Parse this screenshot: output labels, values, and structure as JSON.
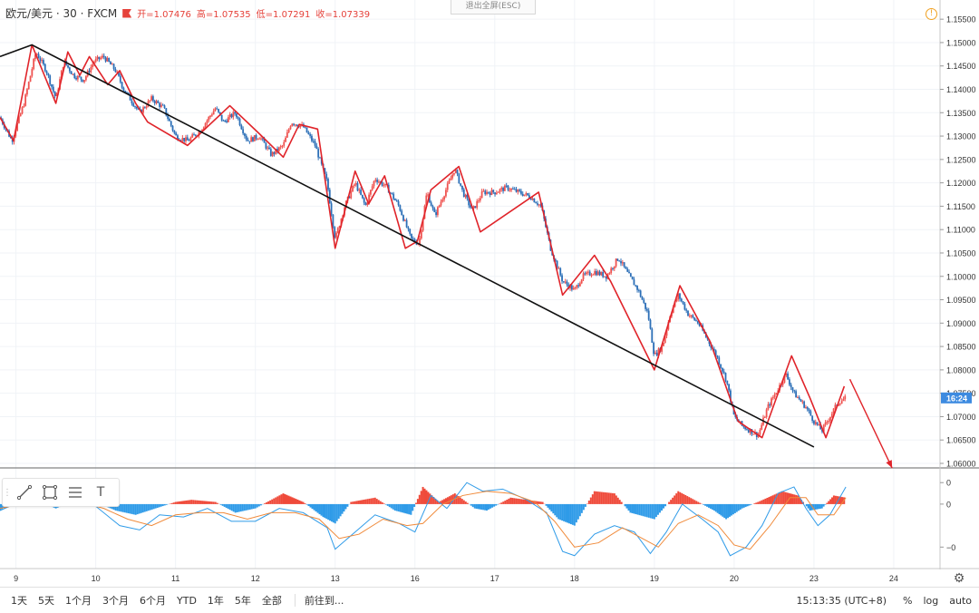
{
  "header": {
    "symbol": "欧元/美元 · 30 · FXCM",
    "open_label": "开=1.07476",
    "high_label": "高=1.07535",
    "low_label": "低=1.07291",
    "close_label": "收=1.07339"
  },
  "exit_fullscreen": "退出全屏(ESC)",
  "warn_icon_text": "!",
  "price_badge": "16:24",
  "colors": {
    "up": "#ef5350",
    "down": "#2c6fb7",
    "zigzag": "#e0242a",
    "trend": "#111111",
    "macd_up": "#ef4a3a",
    "macd_down": "#2f9be8",
    "badge": "#3d8be0"
  },
  "toolbar": {
    "icons": [
      "line-tool-icon",
      "rect-tool-icon",
      "fib-tool-icon",
      "text-tool-icon"
    ],
    "text_tool": "T"
  },
  "bottom_bar": {
    "ranges": [
      "1天",
      "5天",
      "1个月",
      "3个月",
      "6个月",
      "YTD",
      "1年",
      "5年",
      "全部"
    ],
    "goto": "前往到...",
    "time": "15:13:35 (UTC+8)",
    "percent": "%",
    "log": "log",
    "auto": "auto"
  },
  "chart_data": [
    {
      "type": "candlestick",
      "title": "欧元/美元 · 30 · FXCM",
      "y_ticks": [
        "1.15500",
        "1.15000",
        "1.14500",
        "1.14000",
        "1.13500",
        "1.13000",
        "1.12500",
        "1.12000",
        "1.11500",
        "1.11000",
        "1.10500",
        "1.10000",
        "1.09500",
        "1.09000",
        "1.08500",
        "1.08000",
        "1.07500",
        "1.07000",
        "1.06500",
        "1.06000"
      ],
      "ylim": [
        1.06,
        1.156
      ],
      "x_ticks": [
        {
          "label": "9",
          "x": 9.0
        },
        {
          "label": "10",
          "x": 10.0
        },
        {
          "label": "11",
          "x": 11.0
        },
        {
          "label": "12",
          "x": 12.0
        },
        {
          "label": "13",
          "x": 13.0
        },
        {
          "label": "16",
          "x": 14.0
        },
        {
          "label": "17",
          "x": 15.0
        },
        {
          "label": "18",
          "x": 16.0
        },
        {
          "label": "19",
          "x": 17.0
        },
        {
          "label": "20",
          "x": 18.0
        },
        {
          "label": "23",
          "x": 19.0
        },
        {
          "label": "24",
          "x": 20.0
        }
      ],
      "xlim": [
        8.8,
        20.58
      ],
      "price_path": [
        [
          8.8,
          1.134
        ],
        [
          8.95,
          1.129
        ],
        [
          9.1,
          1.137
        ],
        [
          9.25,
          1.148
        ],
        [
          9.38,
          1.144
        ],
        [
          9.5,
          1.138
        ],
        [
          9.6,
          1.146
        ],
        [
          9.72,
          1.143
        ],
        [
          9.85,
          1.142
        ],
        [
          9.98,
          1.146
        ],
        [
          10.1,
          1.147
        ],
        [
          10.25,
          1.144
        ],
        [
          10.35,
          1.14
        ],
        [
          10.55,
          1.135
        ],
        [
          10.7,
          1.138
        ],
        [
          10.85,
          1.136
        ],
        [
          11.0,
          1.13
        ],
        [
          11.15,
          1.129
        ],
        [
          11.3,
          1.131
        ],
        [
          11.5,
          1.136
        ],
        [
          11.6,
          1.133
        ],
        [
          11.75,
          1.135
        ],
        [
          11.9,
          1.129
        ],
        [
          12.05,
          1.13
        ],
        [
          12.2,
          1.126
        ],
        [
          12.35,
          1.128
        ],
        [
          12.45,
          1.133
        ],
        [
          12.6,
          1.132
        ],
        [
          12.75,
          1.128
        ],
        [
          12.9,
          1.12
        ],
        [
          13.0,
          1.108
        ],
        [
          13.12,
          1.115
        ],
        [
          13.25,
          1.12
        ],
        [
          13.38,
          1.115
        ],
        [
          13.5,
          1.121
        ],
        [
          13.65,
          1.119
        ],
        [
          13.8,
          1.115
        ],
        [
          13.95,
          1.108
        ],
        [
          14.05,
          1.107
        ],
        [
          14.15,
          1.118
        ],
        [
          14.25,
          1.113
        ],
        [
          14.35,
          1.117
        ],
        [
          14.5,
          1.123
        ],
        [
          14.6,
          1.118
        ],
        [
          14.72,
          1.114
        ],
        [
          14.85,
          1.118
        ],
        [
          15.0,
          1.118
        ],
        [
          15.15,
          1.119
        ],
        [
          15.3,
          1.118
        ],
        [
          15.45,
          1.117
        ],
        [
          15.58,
          1.115
        ],
        [
          15.7,
          1.106
        ],
        [
          15.85,
          1.099
        ],
        [
          16.0,
          1.097
        ],
        [
          16.1,
          1.1
        ],
        [
          16.25,
          1.101
        ],
        [
          16.4,
          1.1
        ],
        [
          16.55,
          1.104
        ],
        [
          16.65,
          1.101
        ],
        [
          16.8,
          1.097
        ],
        [
          16.92,
          1.092
        ],
        [
          17.0,
          1.083
        ],
        [
          17.1,
          1.085
        ],
        [
          17.2,
          1.092
        ],
        [
          17.3,
          1.096
        ],
        [
          17.42,
          1.092
        ],
        [
          17.55,
          1.09
        ],
        [
          17.65,
          1.087
        ],
        [
          17.78,
          1.083
        ],
        [
          17.9,
          1.078
        ],
        [
          18.0,
          1.07
        ],
        [
          18.1,
          1.068
        ],
        [
          18.2,
          1.067
        ],
        [
          18.3,
          1.066
        ],
        [
          18.42,
          1.072
        ],
        [
          18.55,
          1.076
        ],
        [
          18.65,
          1.079
        ],
        [
          18.75,
          1.075
        ],
        [
          18.9,
          1.072
        ],
        [
          19.0,
          1.069
        ],
        [
          19.1,
          1.067
        ],
        [
          19.2,
          1.07
        ],
        [
          19.3,
          1.073
        ],
        [
          19.4,
          1.074
        ]
      ],
      "zigzag": [
        [
          8.8,
          1.134
        ],
        [
          8.97,
          1.129
        ],
        [
          9.2,
          1.1495
        ],
        [
          9.5,
          1.137
        ],
        [
          9.65,
          1.148
        ],
        [
          9.8,
          1.143
        ],
        [
          9.92,
          1.147
        ],
        [
          10.15,
          1.141
        ],
        [
          10.3,
          1.144
        ],
        [
          10.5,
          1.137
        ],
        [
          10.65,
          1.133
        ],
        [
          11.15,
          1.128
        ],
        [
          11.68,
          1.1365
        ],
        [
          12.05,
          1.1305
        ],
        [
          12.35,
          1.1255
        ],
        [
          12.55,
          1.1325
        ],
        [
          12.78,
          1.1315
        ],
        [
          13.0,
          1.106
        ],
        [
          13.25,
          1.1225
        ],
        [
          13.42,
          1.1155
        ],
        [
          13.62,
          1.1215
        ],
        [
          13.88,
          1.106
        ],
        [
          14.03,
          1.1075
        ],
        [
          14.2,
          1.1185
        ],
        [
          14.55,
          1.1235
        ],
        [
          14.82,
          1.1095
        ],
        [
          15.55,
          1.118
        ],
        [
          15.85,
          1.096
        ],
        [
          16.25,
          1.1045
        ],
        [
          16.45,
          1.099
        ],
        [
          17.0,
          1.08
        ],
        [
          17.32,
          1.098
        ],
        [
          17.7,
          1.086
        ],
        [
          18.05,
          1.069
        ],
        [
          18.35,
          1.0655
        ],
        [
          18.72,
          1.083
        ],
        [
          18.95,
          1.074
        ],
        [
          19.15,
          1.0655
        ],
        [
          19.38,
          1.0765
        ]
      ],
      "trendline": [
        [
          8.8,
          1.147
        ],
        [
          9.2,
          1.1495
        ],
        [
          19.0,
          1.0635
        ]
      ],
      "forecast_arrow": [
        [
          19.45,
          1.078
        ],
        [
          19.98,
          1.059
        ]
      ]
    },
    {
      "type": "macd",
      "y_ticks": [
        "0",
        "0",
        "−0"
      ],
      "ylim": [
        -0.003,
        0.0016
      ],
      "histogram": [
        [
          8.8,
          -0.0003
        ],
        [
          9.0,
          0.0002
        ],
        [
          9.3,
          0.0001
        ],
        [
          9.5,
          -0.0002
        ],
        [
          9.7,
          0.0001
        ],
        [
          10.0,
          0.0001
        ],
        [
          10.25,
          -0.0003
        ],
        [
          10.5,
          -0.0005
        ],
        [
          10.75,
          -0.0002
        ],
        [
          11.0,
          0.0001
        ],
        [
          11.2,
          0.0002
        ],
        [
          11.5,
          0.0001
        ],
        [
          11.75,
          -0.0004
        ],
        [
          12.0,
          -0.0002
        ],
        [
          12.35,
          0.0005
        ],
        [
          12.6,
          0.0001
        ],
        [
          12.85,
          -0.0006
        ],
        [
          13.0,
          -0.0009
        ],
        [
          13.2,
          0.0001
        ],
        [
          13.5,
          0.0003
        ],
        [
          13.75,
          -0.0003
        ],
        [
          13.95,
          -0.0005
        ],
        [
          14.1,
          0.0008
        ],
        [
          14.3,
          0.0001
        ],
        [
          14.5,
          0.0005
        ],
        [
          14.75,
          -0.0002
        ],
        [
          14.9,
          -0.0003
        ],
        [
          15.2,
          0.0003
        ],
        [
          15.6,
          0.0001
        ],
        [
          15.8,
          -0.0007
        ],
        [
          16.0,
          -0.001
        ],
        [
          16.25,
          0.0006
        ],
        [
          16.5,
          0.0005
        ],
        [
          16.7,
          -0.0004
        ],
        [
          17.0,
          -0.0007
        ],
        [
          17.3,
          0.0006
        ],
        [
          17.55,
          0.0001
        ],
        [
          17.75,
          -0.0003
        ],
        [
          17.9,
          -0.0007
        ],
        [
          18.1,
          -0.0002
        ],
        [
          18.3,
          0.0001
        ],
        [
          18.6,
          0.0006
        ],
        [
          18.8,
          0.0004
        ],
        [
          18.95,
          -0.0003
        ],
        [
          19.1,
          -0.0002
        ],
        [
          19.25,
          0.0004
        ],
        [
          19.4,
          0.0003
        ]
      ],
      "macd_line": [
        [
          8.8,
          -0.0003
        ],
        [
          9.1,
          0.0002
        ],
        [
          9.4,
          0.0
        ],
        [
          9.7,
          0.0001
        ],
        [
          10.0,
          -0.0001
        ],
        [
          10.3,
          -0.001
        ],
        [
          10.55,
          -0.0012
        ],
        [
          10.8,
          -0.0005
        ],
        [
          11.1,
          -0.0006
        ],
        [
          11.4,
          -0.0002
        ],
        [
          11.7,
          -0.0008
        ],
        [
          12.0,
          -0.0008
        ],
        [
          12.3,
          -0.0002
        ],
        [
          12.6,
          -0.0004
        ],
        [
          12.9,
          -0.0011
        ],
        [
          13.0,
          -0.0021
        ],
        [
          13.25,
          -0.0013
        ],
        [
          13.5,
          -0.0005
        ],
        [
          13.8,
          -0.0009
        ],
        [
          14.0,
          -0.0013
        ],
        [
          14.2,
          0.0004
        ],
        [
          14.4,
          -0.0002
        ],
        [
          14.65,
          0.001
        ],
        [
          14.85,
          0.0006
        ],
        [
          15.1,
          0.0007
        ],
        [
          15.4,
          0.0002
        ],
        [
          15.65,
          -0.0004
        ],
        [
          15.85,
          -0.0022
        ],
        [
          16.0,
          -0.0024
        ],
        [
          16.25,
          -0.0014
        ],
        [
          16.5,
          -0.001
        ],
        [
          16.75,
          -0.0013
        ],
        [
          16.95,
          -0.0023
        ],
        [
          17.15,
          -0.0013
        ],
        [
          17.35,
          0.0
        ],
        [
          17.6,
          -0.0007
        ],
        [
          17.8,
          -0.0013
        ],
        [
          17.95,
          -0.0024
        ],
        [
          18.15,
          -0.002
        ],
        [
          18.35,
          -0.001
        ],
        [
          18.55,
          0.0005
        ],
        [
          18.75,
          0.0008
        ],
        [
          18.9,
          -0.0002
        ],
        [
          19.05,
          -0.001
        ],
        [
          19.2,
          -0.0005
        ],
        [
          19.4,
          0.0008
        ]
      ],
      "signal_line": [
        [
          8.8,
          -0.0002
        ],
        [
          9.2,
          0.0001
        ],
        [
          9.5,
          0.0
        ],
        [
          9.8,
          0.0001
        ],
        [
          10.1,
          -0.0002
        ],
        [
          10.4,
          -0.0007
        ],
        [
          10.7,
          -0.001
        ],
        [
          11.0,
          -0.0005
        ],
        [
          11.3,
          -0.0004
        ],
        [
          11.6,
          -0.0004
        ],
        [
          11.9,
          -0.0007
        ],
        [
          12.2,
          -0.0004
        ],
        [
          12.5,
          -0.0004
        ],
        [
          12.8,
          -0.0007
        ],
        [
          13.05,
          -0.0016
        ],
        [
          13.3,
          -0.0014
        ],
        [
          13.6,
          -0.0007
        ],
        [
          13.9,
          -0.001
        ],
        [
          14.1,
          -0.0009
        ],
        [
          14.35,
          0.0
        ],
        [
          14.6,
          0.0004
        ],
        [
          14.9,
          0.0006
        ],
        [
          15.2,
          0.0005
        ],
        [
          15.5,
          0.0001
        ],
        [
          15.75,
          -0.0008
        ],
        [
          16.0,
          -0.002
        ],
        [
          16.3,
          -0.0018
        ],
        [
          16.6,
          -0.0011
        ],
        [
          16.85,
          -0.0016
        ],
        [
          17.05,
          -0.002
        ],
        [
          17.3,
          -0.0009
        ],
        [
          17.55,
          -0.0005
        ],
        [
          17.8,
          -0.001
        ],
        [
          18.0,
          -0.0019
        ],
        [
          18.2,
          -0.0021
        ],
        [
          18.45,
          -0.001
        ],
        [
          18.7,
          0.0003
        ],
        [
          18.9,
          0.0003
        ],
        [
          19.05,
          -0.0005
        ],
        [
          19.25,
          -0.0005
        ],
        [
          19.4,
          0.0003
        ]
      ]
    }
  ]
}
